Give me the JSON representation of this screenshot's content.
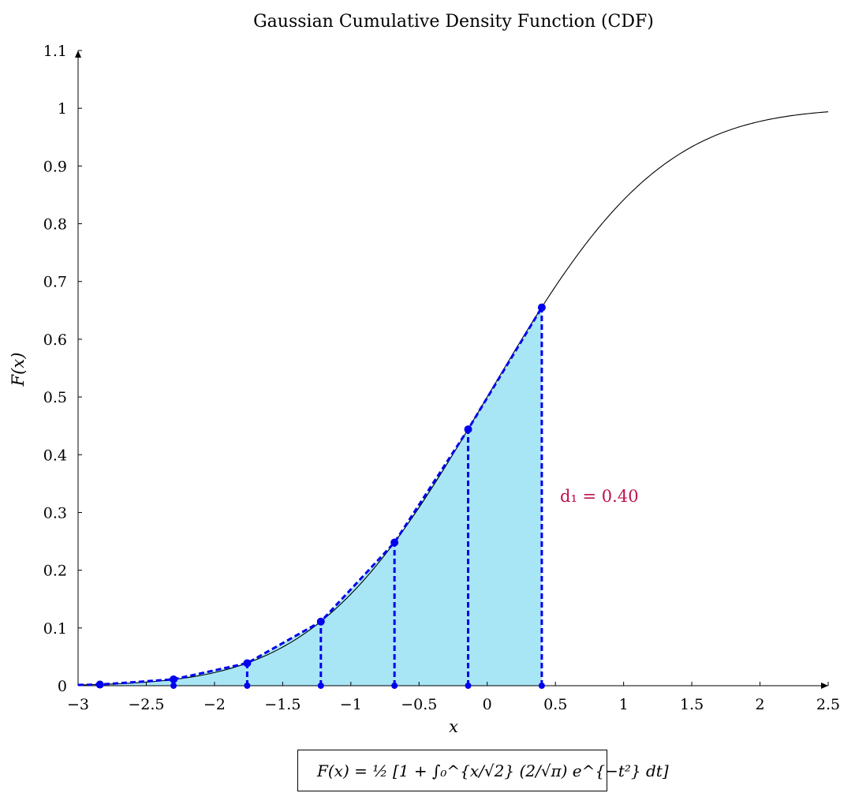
{
  "chart_data": {
    "type": "line",
    "title": "Gaussian Cumulative Density Function (CDF)",
    "xlabel": "x",
    "ylabel": "F(x)",
    "xlim": [
      -3,
      2.5
    ],
    "ylim": [
      0,
      1.1
    ],
    "x_ticks": [
      -3,
      -2.5,
      -2,
      -1.5,
      -1,
      -0.5,
      0,
      0.5,
      1,
      1.5,
      2,
      2.5
    ],
    "x_tick_labels": [
      "−3",
      "−2.5",
      "−2",
      "−1.5",
      "−1",
      "−0.5",
      "0",
      "0.5",
      "1",
      "1.5",
      "2",
      "2.5"
    ],
    "y_ticks": [
      0,
      0.1,
      0.2,
      0.3,
      0.4,
      0.5,
      0.6,
      0.7,
      0.8,
      0.9,
      1,
      1.1
    ],
    "y_tick_labels": [
      "0",
      "0.1",
      "0.2",
      "0.3",
      "0.4",
      "0.5",
      "0.6",
      "0.7",
      "0.8",
      "0.9",
      "1",
      "1.1"
    ],
    "series": [
      {
        "name": "F(x) = ½ [1 + ∫₀^{x/√2} (2/√π) e^{−t²} dt]",
        "function": "normal_cdf",
        "color": "#000000"
      },
      {
        "points": [
          {
            "x": -2.84,
            "y": 0.002
          },
          {
            "x": -2.3,
            "y": 0.011
          },
          {
            "x": -1.76,
            "y": 0.039
          },
          {
            "x": -1.22,
            "y": 0.111
          },
          {
            "x": -0.68,
            "y": 0.248
          },
          {
            "x": -0.14,
            "y": 0.444
          },
          {
            "x": 0.4,
            "y": 0.655
          }
        ],
        "color": "#0000ee",
        "style": "dashed",
        "fill": "#a8e6f6"
      }
    ],
    "annotation": "d₁ = 0.40"
  },
  "legend": {
    "label": "F(x) = ½ [1 + ∫₀^{x/√2} (2/√π) e^{−t²} dt]"
  }
}
